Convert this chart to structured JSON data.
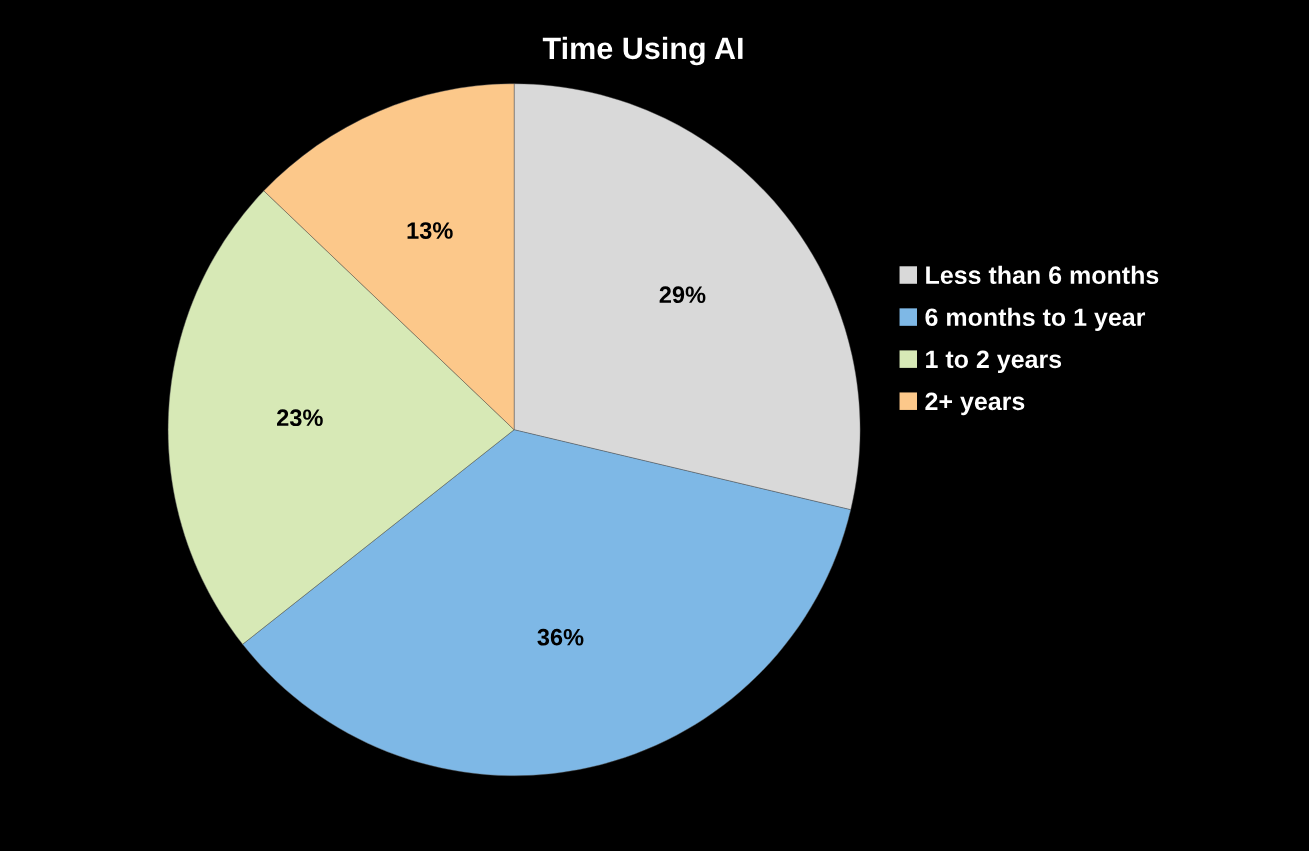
{
  "chart_data": {
    "type": "pie",
    "title": "Time Using AI",
    "categories": [
      "Less than 6 months",
      "6 months to 1 year",
      "1 to 2 years",
      "2+ years"
    ],
    "values": [
      29,
      36,
      23,
      13
    ],
    "value_labels": [
      "29%",
      "36%",
      "23%",
      "13%"
    ],
    "colors": [
      "#d9d9d9",
      "#7eb8e6",
      "#d7e9b6",
      "#fcc88a"
    ],
    "legend": "right"
  }
}
